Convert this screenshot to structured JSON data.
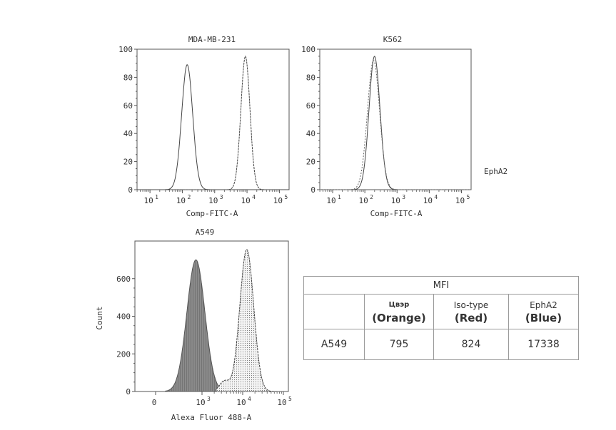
{
  "chart_data": [
    {
      "type": "histogram",
      "title": "MDA-MB-231",
      "xlabel": "Comp-FITC-A",
      "ylabel": "",
      "x_scale": "log",
      "x_ticks": [
        "10",
        "10",
        "10",
        "10",
        "10"
      ],
      "x_tick_exponents": [
        "1",
        "2",
        "3",
        "4",
        "5"
      ],
      "y_ticks": [
        "0",
        "20",
        "40",
        "60",
        "80",
        "100"
      ],
      "ylim": [
        0,
        100
      ],
      "xlim_log10": [
        0.6,
        5.3
      ],
      "series": [
        {
          "peak_log10": 2.15,
          "peak": 89,
          "width": 0.17
        },
        {
          "peak_log10": 3.95,
          "peak": 95,
          "width": 0.14
        }
      ]
    },
    {
      "type": "histogram",
      "title": "K562",
      "xlabel": "Comp-FITC-A",
      "ylabel": "",
      "x_scale": "log",
      "x_ticks": [
        "10",
        "10",
        "10",
        "10",
        "10"
      ],
      "x_tick_exponents": [
        "1",
        "2",
        "3",
        "4",
        "5"
      ],
      "y_ticks": [
        "0",
        "20",
        "40",
        "60",
        "80",
        "100"
      ],
      "ylim": [
        0,
        100
      ],
      "xlim_log10": [
        0.6,
        5.3
      ],
      "series": [
        {
          "peak_log10": 2.3,
          "peak": 95,
          "width": 0.17
        },
        {
          "peak_log10": 2.27,
          "peak": 92,
          "width": 0.19
        }
      ],
      "side_label": "EphA2"
    },
    {
      "type": "histogram",
      "title": "A549",
      "xlabel": "Alexa Fluor 488-A",
      "ylabel": "Count",
      "x_scale": "biexponential",
      "x_ticks": [
        "0",
        "10",
        "10",
        "10"
      ],
      "x_tick_exponents": [
        "",
        "3",
        "4",
        "5"
      ],
      "y_ticks": [
        "0",
        "200",
        "400",
        "600"
      ],
      "ylim": [
        0,
        800
      ],
      "series": [
        {
          "name": "Isotype",
          "peak_log10": 2.85,
          "peak": 700,
          "width": 0.22,
          "fill": "dark-gray"
        },
        {
          "name": "EphA2",
          "peak_log10": 4.1,
          "peak": 755,
          "width": 0.17,
          "fill": "light-dotted"
        }
      ]
    },
    {
      "type": "table",
      "header": "MFI",
      "columns": [
        {
          "top": "",
          "bottom": ""
        },
        {
          "top": "Цвэр",
          "bottom": "(Orange)"
        },
        {
          "top": "Iso-type",
          "bottom": "(Red)"
        },
        {
          "top": "EphA2",
          "bottom": "(Blue)"
        }
      ],
      "rows": [
        [
          "A549",
          "795",
          "824",
          "17338"
        ]
      ]
    }
  ]
}
